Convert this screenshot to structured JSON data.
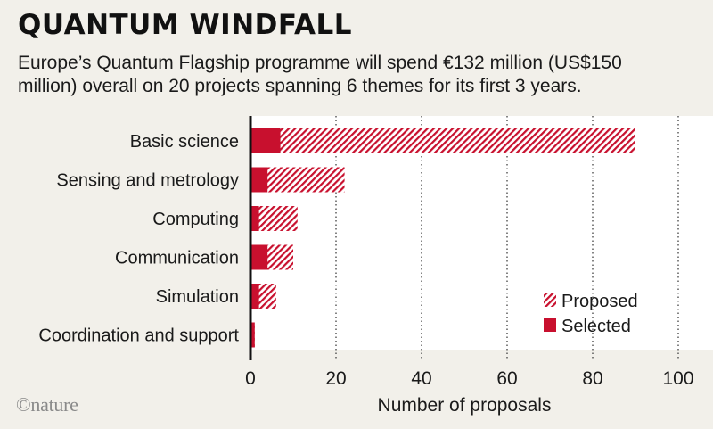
{
  "header": {
    "title": "QUANTUM WINDFALL",
    "subtitle": "Europe’s Quantum Flagship programme will spend €132 million (US$150 million) overall on 20 projects spanning 6 themes for its first 3 years."
  },
  "credit": "©nature",
  "colors": {
    "background": "#f2f0ea",
    "plot_background": "#ffffff",
    "accent": "#c8102e",
    "grid": "#333333"
  },
  "chart_data": {
    "type": "bar",
    "orientation": "horizontal",
    "categories": [
      "Basic science",
      "Sensing and metrology",
      "Computing",
      "Communication",
      "Simulation",
      "Coordination and support"
    ],
    "series": [
      {
        "name": "Proposed",
        "values": [
          90,
          22,
          11,
          10,
          6,
          1
        ],
        "style": "hatched"
      },
      {
        "name": "Selected",
        "values": [
          7,
          4,
          2,
          4,
          2,
          1
        ],
        "style": "solid"
      }
    ],
    "xlabel": "Number of proposals",
    "ylabel": "",
    "xlim": [
      0,
      100
    ],
    "xticks": [
      0,
      20,
      40,
      60,
      80,
      100
    ],
    "grid": "vertical dotted",
    "legend_position": "bottom-right"
  }
}
